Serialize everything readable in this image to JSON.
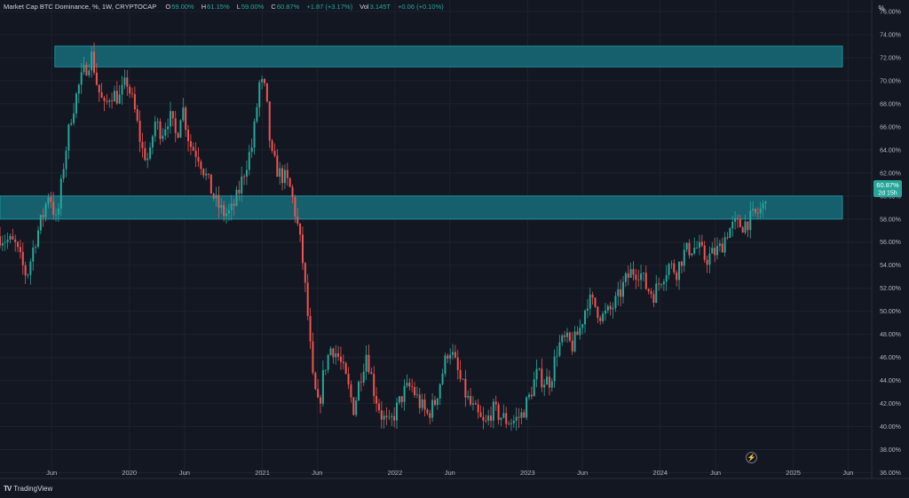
{
  "legend": {
    "symbol": "Market Cap BTC Dominance, %, 1W, CRYPTOCAP",
    "o_label": "O",
    "o_value": "59.00%",
    "h_label": "H",
    "h_value": "61.15%",
    "l_label": "L",
    "l_value": "59.00%",
    "c_label": "C",
    "c_value": "60.87%",
    "change": "+1.87 (+3.17%)",
    "vol_label": "Vol",
    "vol_value": "3.145T",
    "vol_change": "+0.06 (+0.10%)"
  },
  "scale_button": "%",
  "branding": {
    "logo_mark": "TV",
    "name": "TradingView"
  },
  "lightning_icon": "lightning-icon",
  "colors": {
    "background": "#131722",
    "up": "#26a69a",
    "down": "#ef5350",
    "zone": "#16606e",
    "zone_border": "#1f8d9c",
    "grid": "#1e222d",
    "text": "#b2b5be",
    "price_tag": "#26a69a"
  },
  "chart_data": {
    "type": "candlestick",
    "title": "Market Cap BTC Dominance, %, 1W, CRYPTOCAP",
    "y_axis": {
      "unit": "%",
      "ticks": [
        "76.00%",
        "74.00%",
        "72.00%",
        "70.00%",
        "68.00%",
        "66.00%",
        "64.00%",
        "62.00%",
        "60.00%",
        "58.00%",
        "56.00%",
        "54.00%",
        "52.00%",
        "50.00%",
        "48.00%",
        "46.00%",
        "44.00%",
        "42.00%",
        "40.00%",
        "38.00%",
        "36.00%"
      ],
      "range": [
        35.5,
        77
      ]
    },
    "x_axis": {
      "ticks": [
        "Jun",
        "2020",
        "Jun",
        "2021",
        "Jun",
        "2022",
        "Jun",
        "2023",
        "Jun",
        "2024",
        "Jun",
        "2025",
        "Jun"
      ],
      "tick_dates": [
        "2019-06-01",
        "2020-01-01",
        "2020-06-01",
        "2021-01-01",
        "2021-06-01",
        "2022-01-01",
        "2022-06-01",
        "2023-01-01",
        "2023-06-01",
        "2024-01-01",
        "2024-06-01",
        "2025-01-01",
        "2025-06-01"
      ],
      "range": [
        "2019-01-10",
        "2025-08-05"
      ]
    },
    "current_price": {
      "label": "60.87%",
      "countdown": "2d 15h",
      "value": 60.87
    },
    "zones": [
      {
        "name": "resistance-zone-upper",
        "low": 71.2,
        "high": 73.0,
        "from": "2019-06-10"
      },
      {
        "name": "resistance-zone-lower",
        "low": 58.0,
        "high": 60.0,
        "from": "2019-01-10"
      }
    ],
    "close_path": [
      [
        "2019-01-10",
        56.5
      ],
      [
        "2019-02-20",
        55.8
      ],
      [
        "2019-03-10",
        54.2
      ],
      [
        "2019-03-25",
        53.0
      ],
      [
        "2019-04-15",
        56.0
      ],
      [
        "2019-05-10",
        58.5
      ],
      [
        "2019-05-25",
        60.5
      ],
      [
        "2019-06-15",
        57.5
      ],
      [
        "2019-07-05",
        63.0
      ],
      [
        "2019-07-25",
        67.0
      ],
      [
        "2019-08-15",
        69.5
      ],
      [
        "2019-09-01",
        71.0
      ],
      [
        "2019-09-20",
        72.2
      ],
      [
        "2019-10-05",
        69.5
      ],
      [
        "2019-10-25",
        67.5
      ],
      [
        "2019-11-10",
        69.0
      ],
      [
        "2019-12-05",
        68.5
      ],
      [
        "2019-12-25",
        70.0
      ],
      [
        "2020-01-15",
        67.5
      ],
      [
        "2020-02-05",
        64.0
      ],
      [
        "2020-02-25",
        63.0
      ],
      [
        "2020-03-10",
        66.5
      ],
      [
        "2020-03-30",
        65.5
      ],
      [
        "2020-04-20",
        67.0
      ],
      [
        "2020-05-10",
        65.0
      ],
      [
        "2020-05-25",
        68.0
      ],
      [
        "2020-06-15",
        64.5
      ],
      [
        "2020-07-10",
        63.5
      ],
      [
        "2020-08-01",
        61.5
      ],
      [
        "2020-08-25",
        59.5
      ],
      [
        "2020-09-15",
        58.5
      ],
      [
        "2020-10-05",
        58.5
      ],
      [
        "2020-10-25",
        60.0
      ],
      [
        "2020-11-15",
        62.5
      ],
      [
        "2020-12-05",
        64.5
      ],
      [
        "2020-12-25",
        70.0
      ],
      [
        "2021-01-10",
        69.0
      ],
      [
        "2021-01-25",
        63.5
      ],
      [
        "2021-02-15",
        62.0
      ],
      [
        "2021-03-05",
        61.5
      ],
      [
        "2021-03-20",
        60.5
      ],
      [
        "2021-04-05",
        58.0
      ],
      [
        "2021-04-20",
        55.0
      ],
      [
        "2021-05-05",
        50.0
      ],
      [
        "2021-05-20",
        44.0
      ],
      [
        "2021-06-05",
        41.5
      ],
      [
        "2021-06-20",
        45.0
      ],
      [
        "2021-07-10",
        47.0
      ],
      [
        "2021-07-30",
        46.0
      ],
      [
        "2021-08-20",
        44.0
      ],
      [
        "2021-09-10",
        41.5
      ],
      [
        "2021-09-25",
        44.0
      ],
      [
        "2021-10-15",
        46.5
      ],
      [
        "2021-11-05",
        43.0
      ],
      [
        "2021-11-25",
        41.0
      ],
      [
        "2021-12-15",
        40.0
      ],
      [
        "2022-01-05",
        41.5
      ],
      [
        "2022-01-25",
        43.0
      ],
      [
        "2022-02-15",
        43.5
      ],
      [
        "2022-03-10",
        42.0
      ],
      [
        "2022-03-30",
        41.0
      ],
      [
        "2022-04-20",
        42.0
      ],
      [
        "2022-05-10",
        44.5
      ],
      [
        "2022-05-30",
        47.0
      ],
      [
        "2022-06-15",
        45.5
      ],
      [
        "2022-07-05",
        43.5
      ],
      [
        "2022-07-25",
        42.0
      ],
      [
        "2022-08-15",
        41.0
      ],
      [
        "2022-09-05",
        40.0
      ],
      [
        "2022-09-25",
        41.5
      ],
      [
        "2022-10-15",
        41.0
      ],
      [
        "2022-11-05",
        40.5
      ],
      [
        "2022-11-25",
        40.5
      ],
      [
        "2022-12-15",
        41.0
      ],
      [
        "2023-01-05",
        42.5
      ],
      [
        "2023-01-25",
        44.5
      ],
      [
        "2023-02-15",
        44.0
      ],
      [
        "2023-03-05",
        44.0
      ],
      [
        "2023-03-25",
        47.0
      ],
      [
        "2023-04-15",
        47.5
      ],
      [
        "2023-05-05",
        47.0
      ],
      [
        "2023-05-25",
        48.5
      ],
      [
        "2023-06-15",
        51.0
      ],
      [
        "2023-07-05",
        50.5
      ],
      [
        "2023-07-25",
        49.5
      ],
      [
        "2023-08-15",
        50.0
      ],
      [
        "2023-09-05",
        51.0
      ],
      [
        "2023-09-25",
        52.5
      ],
      [
        "2023-10-15",
        53.5
      ],
      [
        "2023-11-05",
        53.5
      ],
      [
        "2023-11-25",
        52.0
      ],
      [
        "2023-12-15",
        51.5
      ],
      [
        "2024-01-05",
        53.0
      ],
      [
        "2024-01-25",
        54.0
      ],
      [
        "2024-02-15",
        53.5
      ],
      [
        "2024-03-05",
        55.0
      ],
      [
        "2024-03-25",
        55.5
      ],
      [
        "2024-04-15",
        55.5
      ],
      [
        "2024-05-05",
        54.5
      ],
      [
        "2024-05-25",
        55.0
      ],
      [
        "2024-06-15",
        55.5
      ],
      [
        "2024-07-05",
        57.0
      ],
      [
        "2024-07-25",
        57.5
      ],
      [
        "2024-08-15",
        57.5
      ],
      [
        "2024-09-05",
        58.0
      ],
      [
        "2024-09-25",
        58.5
      ],
      [
        "2024-10-10",
        59.0
      ],
      [
        "2024-10-20",
        60.87
      ]
    ]
  }
}
